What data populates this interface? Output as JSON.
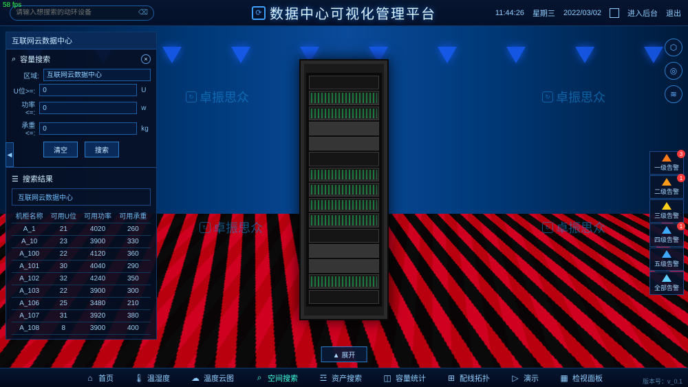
{
  "fps": "58 fps",
  "header": {
    "search_placeholder": "请输入想搜索的动环设备",
    "title": "数据中心可视化管理平台",
    "time": "11:44:26",
    "weekday": "星期三",
    "date": "2022/03/02",
    "enter_admin": "进入后台",
    "logout": "退出"
  },
  "panel": {
    "root_title": "互联网云数据中心",
    "search_section": "容量搜索",
    "region_label": "区域:",
    "region_value": "互联网云数据中心",
    "u_label": "U位>=:",
    "u_value": "0",
    "u_unit": "U",
    "power_label": "功率<=:",
    "power_value": "0",
    "power_unit": "w",
    "load_label": "承重<=:",
    "load_value": "0",
    "load_unit": "kg",
    "btn_clear": "清空",
    "btn_search": "搜索",
    "results_section": "搜索结果",
    "crumb": "互联网云数据中心",
    "cols": [
      "机柜名称",
      "可用U位",
      "可用功率",
      "可用承重"
    ],
    "rows": [
      [
        "A_1",
        "21",
        "4020",
        "260"
      ],
      [
        "A_10",
        "23",
        "3900",
        "330"
      ],
      [
        "A_100",
        "22",
        "4120",
        "360"
      ],
      [
        "A_101",
        "30",
        "4040",
        "290"
      ],
      [
        "A_102",
        "32",
        "4240",
        "350"
      ],
      [
        "A_103",
        "22",
        "3900",
        "300"
      ],
      [
        "A_106",
        "25",
        "3480",
        "210"
      ],
      [
        "A_107",
        "31",
        "3920",
        "380"
      ],
      [
        "A_108",
        "8",
        "3900",
        "400"
      ]
    ]
  },
  "watermark": "卓振思众",
  "alarms": [
    {
      "label": "一级告警",
      "color": "#ff7a1a",
      "badge": "3"
    },
    {
      "label": "二级告警",
      "color": "#ff9a1a",
      "badge": "1"
    },
    {
      "label": "三级告警",
      "color": "#ffcf1a",
      "badge": ""
    },
    {
      "label": "四级告警",
      "color": "#3fa8ff",
      "badge": "1"
    },
    {
      "label": "五级告警",
      "color": "#3fa8ff",
      "badge": ""
    },
    {
      "label": "全部告警",
      "color": "#5fcfff",
      "badge": ""
    }
  ],
  "expand": "▲ 展开",
  "nav": [
    {
      "icon": "⌂",
      "label": "首页"
    },
    {
      "icon": "🌡",
      "label": "温湿度"
    },
    {
      "icon": "☁",
      "label": "温度云图"
    },
    {
      "icon": "⌕",
      "label": "空间搜索",
      "active": true
    },
    {
      "icon": "☲",
      "label": "资产搜索"
    },
    {
      "icon": "◫",
      "label": "容量统计"
    },
    {
      "icon": "⊞",
      "label": "配线拓扑"
    },
    {
      "icon": "▷",
      "label": "演示"
    },
    {
      "icon": "▦",
      "label": "检视面板"
    }
  ],
  "version": "版本号：v_0.1"
}
